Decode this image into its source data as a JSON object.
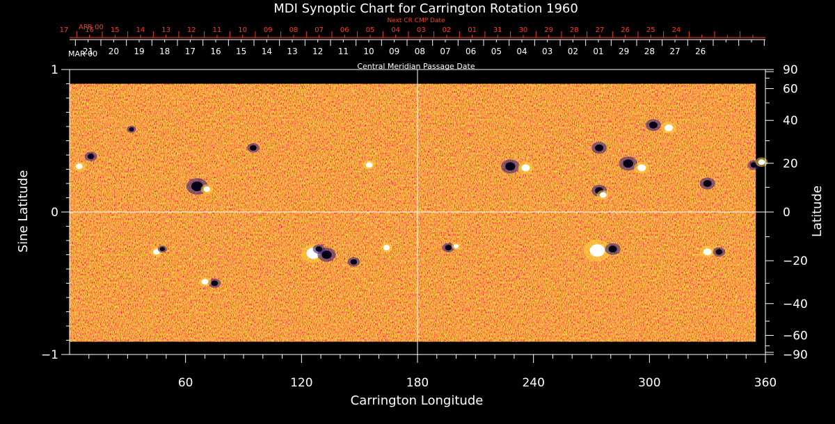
{
  "chart_data": {
    "type": "heatmap",
    "title": "MDI Synoptic Chart for Carrington Rotation 1960",
    "xlabel": "Carrington Longitude",
    "ylabel_left": "Sine Latitude",
    "ylabel_right": "Latitude",
    "xlim": [
      0,
      360
    ],
    "ylim": [
      -1,
      1
    ],
    "x_ticks": [
      60,
      120,
      180,
      240,
      300,
      360
    ],
    "y_ticks_left": [
      {
        "value": 1,
        "label": "1"
      },
      {
        "value": 0,
        "label": "0"
      },
      {
        "value": -1,
        "label": "−1"
      }
    ],
    "y_ticks_right": [
      {
        "deg": 90,
        "label": "90"
      },
      {
        "deg": 60,
        "label": "60"
      },
      {
        "deg": 40,
        "label": "40"
      },
      {
        "deg": 20,
        "label": "20"
      },
      {
        "deg": 0,
        "label": "0"
      },
      {
        "deg": -20,
        "label": "−20"
      },
      {
        "deg": -40,
        "label": "−40"
      },
      {
        "deg": -60,
        "label": "−60"
      },
      {
        "deg": -90,
        "label": "−90"
      }
    ],
    "data_latitude_limit": 0.9,
    "crosshair": {
      "longitude": 180,
      "sine_latitude": 0
    },
    "top_axis": {
      "label": "Central Meridian Passage Date",
      "start_month": "MAR 00",
      "dates": [
        "21",
        "20",
        "19",
        "18",
        "17",
        "16",
        "15",
        "14",
        "13",
        "12",
        "11",
        "10",
        "09",
        "08",
        "07",
        "06",
        "05",
        "04",
        "03",
        "02",
        "01",
        "29",
        "28",
        "27",
        "26"
      ],
      "first_longitude": 3,
      "step": 13.2
    },
    "next_axis": {
      "label": "Next CR CMP Date",
      "start_month": "APR 00",
      "dates": [
        "17",
        "16",
        "15",
        "14",
        "13",
        "12",
        "11",
        "10",
        "09",
        "08",
        "07",
        "06",
        "05",
        "04",
        "03",
        "02",
        "01",
        "31",
        "30",
        "29",
        "28",
        "27",
        "26",
        "25",
        "24"
      ],
      "first_longitude": -9.5,
      "step": 13.2
    },
    "active_regions": [
      {
        "lon": 5,
        "sinlat": 0.32,
        "r": 4,
        "polarity": "pos"
      },
      {
        "lon": 11,
        "sinlat": 0.39,
        "r": 4,
        "polarity": "neg"
      },
      {
        "lon": 32,
        "sinlat": 0.58,
        "r": 3,
        "polarity": "neg"
      },
      {
        "lon": 66,
        "sinlat": 0.18,
        "r": 7,
        "polarity": "neg"
      },
      {
        "lon": 71,
        "sinlat": 0.16,
        "r": 4,
        "polarity": "pos"
      },
      {
        "lon": 95,
        "sinlat": 0.45,
        "r": 4,
        "polarity": "neg"
      },
      {
        "lon": 155,
        "sinlat": 0.33,
        "r": 4,
        "polarity": "pos"
      },
      {
        "lon": 228,
        "sinlat": 0.32,
        "r": 6,
        "polarity": "neg"
      },
      {
        "lon": 236,
        "sinlat": 0.31,
        "r": 5,
        "polarity": "pos"
      },
      {
        "lon": 274,
        "sinlat": 0.45,
        "r": 5,
        "polarity": "neg"
      },
      {
        "lon": 289,
        "sinlat": 0.34,
        "r": 6,
        "polarity": "neg"
      },
      {
        "lon": 296,
        "sinlat": 0.31,
        "r": 5,
        "polarity": "pos"
      },
      {
        "lon": 302,
        "sinlat": 0.61,
        "r": 5,
        "polarity": "neg"
      },
      {
        "lon": 310,
        "sinlat": 0.59,
        "r": 5,
        "polarity": "pos"
      },
      {
        "lon": 274,
        "sinlat": 0.15,
        "r": 5,
        "polarity": "neg"
      },
      {
        "lon": 276,
        "sinlat": 0.12,
        "r": 4,
        "polarity": "pos"
      },
      {
        "lon": 330,
        "sinlat": 0.2,
        "r": 5,
        "polarity": "neg"
      },
      {
        "lon": 354,
        "sinlat": 0.33,
        "r": 4,
        "polarity": "neg"
      },
      {
        "lon": 358,
        "sinlat": 0.35,
        "r": 4,
        "polarity": "pos"
      },
      {
        "lon": 126,
        "sinlat": -0.29,
        "r": 8,
        "polarity": "pos"
      },
      {
        "lon": 133,
        "sinlat": -0.3,
        "r": 6,
        "polarity": "neg"
      },
      {
        "lon": 129,
        "sinlat": -0.26,
        "r": 4,
        "polarity": "neg"
      },
      {
        "lon": 45,
        "sinlat": -0.28,
        "r": 4,
        "polarity": "pos"
      },
      {
        "lon": 48,
        "sinlat": -0.26,
        "r": 3,
        "polarity": "neg"
      },
      {
        "lon": 164,
        "sinlat": -0.25,
        "r": 4,
        "polarity": "pos"
      },
      {
        "lon": 196,
        "sinlat": -0.25,
        "r": 4,
        "polarity": "neg"
      },
      {
        "lon": 200,
        "sinlat": -0.24,
        "r": 3,
        "polarity": "pos"
      },
      {
        "lon": 273,
        "sinlat": -0.27,
        "r": 9,
        "polarity": "pos"
      },
      {
        "lon": 281,
        "sinlat": -0.26,
        "r": 5,
        "polarity": "neg"
      },
      {
        "lon": 330,
        "sinlat": -0.28,
        "r": 5,
        "polarity": "pos"
      },
      {
        "lon": 336,
        "sinlat": -0.28,
        "r": 4,
        "polarity": "neg"
      },
      {
        "lon": 75,
        "sinlat": -0.5,
        "r": 4,
        "polarity": "neg"
      },
      {
        "lon": 70,
        "sinlat": -0.49,
        "r": 4,
        "polarity": "pos"
      },
      {
        "lon": 147,
        "sinlat": -0.35,
        "r": 4,
        "polarity": "neg"
      }
    ]
  },
  "palette": {
    "background": "#000000",
    "axis": "#ffffff",
    "red_axis": "#ff3b1f",
    "field_base": "#e8501c",
    "field_dark": "#b8200c",
    "field_light": "#ff8a2a",
    "positive": "#ffffff",
    "positive_halo": "#ffd23a",
    "negative": "#080018",
    "negative_halo": "#2a1a80"
  }
}
